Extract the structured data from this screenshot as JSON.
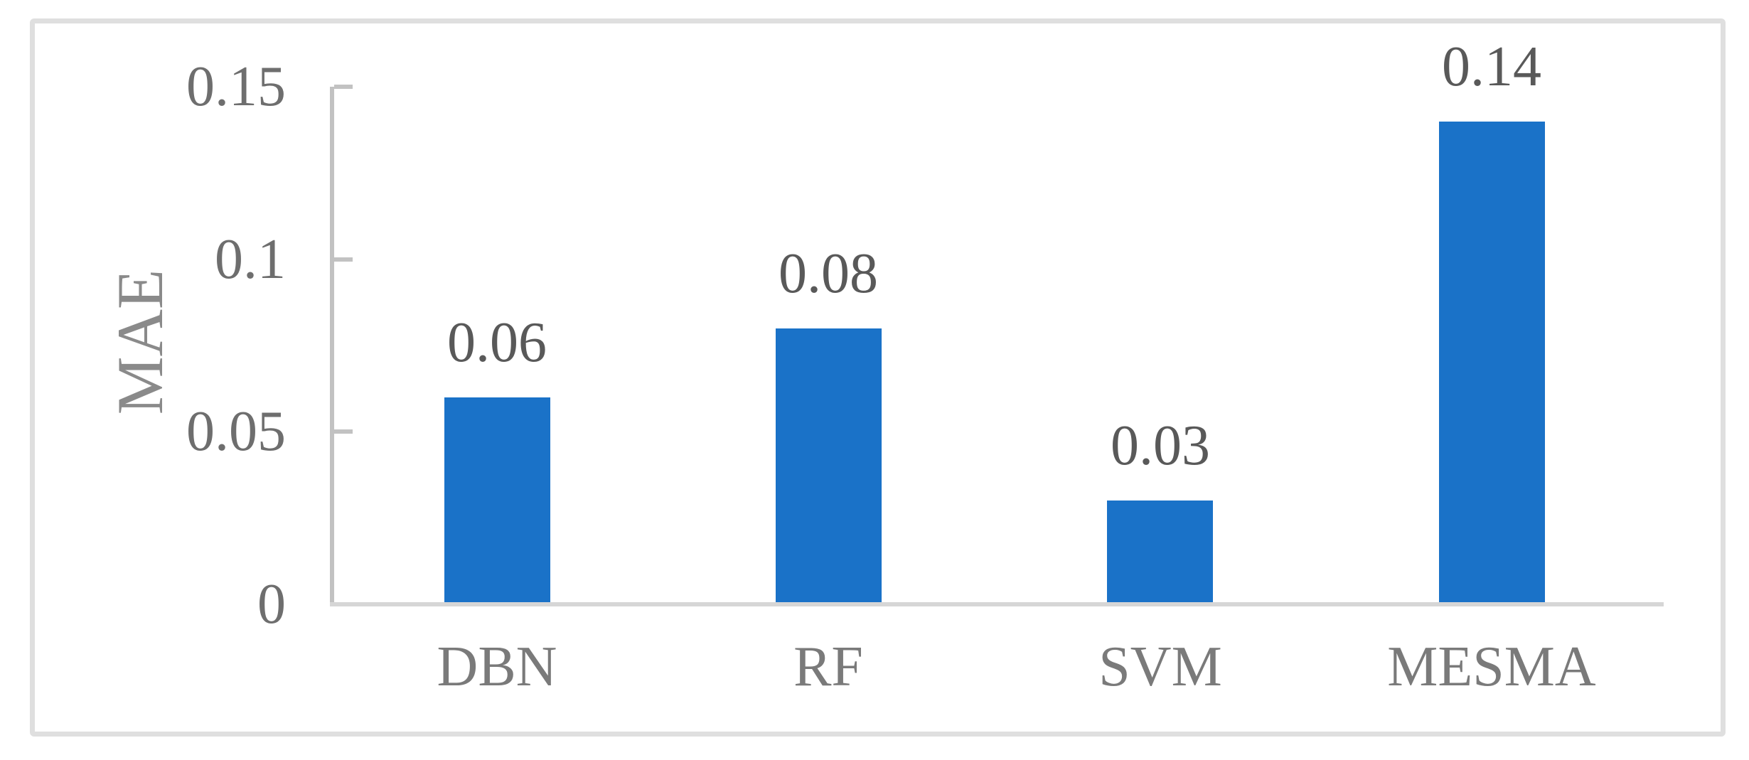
{
  "figure": {
    "background_color": "#FFFFFF",
    "border_color": "#DFDFDF"
  },
  "chart_data": {
    "type": "bar",
    "title": "",
    "categories": [
      "DBN",
      "RF",
      "SVM",
      "MESMA"
    ],
    "values": [
      0.06,
      0.08,
      0.03,
      0.14
    ],
    "bar_value_labels": [
      "0.06",
      "0.08",
      "0.03",
      "0.14"
    ],
    "xlabel": "",
    "ylabel": "MAE",
    "ylim": [
      0,
      0.15
    ],
    "yticks": [
      {
        "value": 0,
        "label": "0"
      },
      {
        "value": 0.05,
        "label": "0.05"
      },
      {
        "value": 0.1,
        "label": "0.1"
      },
      {
        "value": 0.15,
        "label": "0.15"
      }
    ],
    "grid": false,
    "legend_position": "none",
    "colors": {
      "bar": "#1A72C8",
      "y_axis_line": "#C2C2C2",
      "x_axis_line": "#D6D6D6",
      "tick_label": "#6E6E6E",
      "category_label": "#7A7A7A",
      "value_label": "#595959",
      "ylabel": "#8A8A8A"
    }
  }
}
